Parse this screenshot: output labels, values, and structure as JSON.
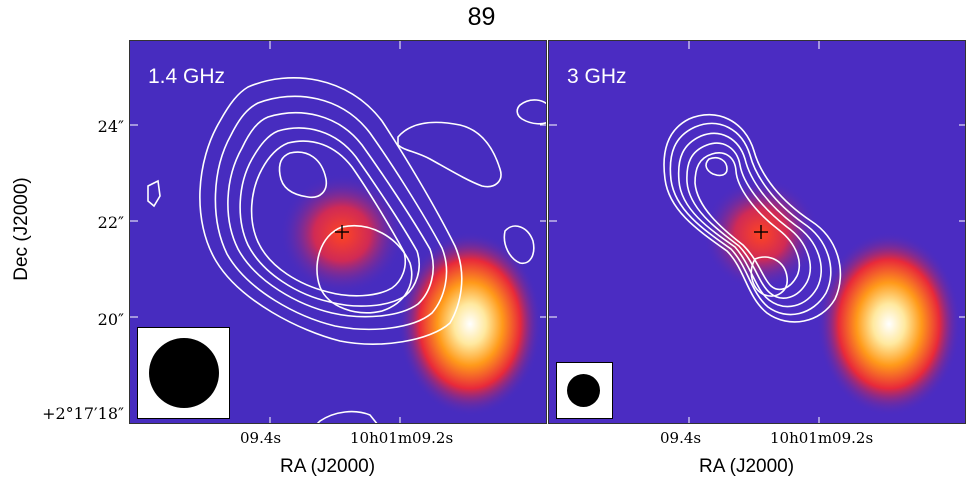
{
  "figure_title": "89",
  "panels": [
    {
      "band_label": "1.4 GHz",
      "xticks": [
        "09.4s",
        "10h01m09.2s"
      ],
      "xlabel": "RA (J2000)"
    },
    {
      "band_label": "3 GHz",
      "xticks": [
        "09.4s",
        "10h01m09.2s"
      ],
      "xlabel": "RA (J2000)"
    }
  ],
  "ylabel": "Dec (J2000)",
  "yticks": [
    "24″",
    "22″",
    "20″",
    "+2°17′18″"
  ],
  "colors": {
    "background_map": "#4a2bbf",
    "source_core": "#ffffff",
    "contours": "#ffffff",
    "marker": "#000000"
  }
}
